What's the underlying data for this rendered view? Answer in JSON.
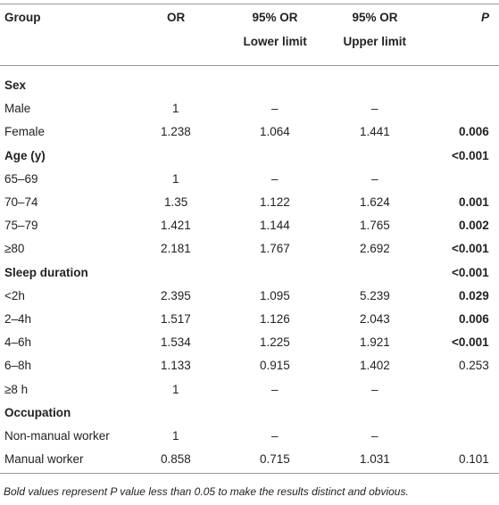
{
  "table": {
    "header": {
      "group": "Group",
      "or": "OR",
      "lower": [
        "95% OR",
        "Lower limit"
      ],
      "upper": [
        "95% OR",
        "Upper limit"
      ],
      "p": "P"
    },
    "rows": [
      {
        "group": "Sex",
        "heading": true
      },
      {
        "group": "Male",
        "or": 1,
        "lower": "–",
        "upper": "–"
      },
      {
        "group": "Female",
        "or": 1.238,
        "lower": 1.064,
        "upper": 1.441,
        "p": 0.006,
        "p_bold": true
      },
      {
        "group": "Age (y)",
        "heading": true,
        "p": "<0.001",
        "p_bold": true
      },
      {
        "group": "65–69",
        "or": 1,
        "lower": "–",
        "upper": "–"
      },
      {
        "group": "70–74",
        "or": 1.35,
        "lower": 1.122,
        "upper": 1.624,
        "p": 0.001,
        "p_bold": true
      },
      {
        "group": "75–79",
        "or": 1.421,
        "lower": 1.144,
        "upper": 1.765,
        "p": 0.002,
        "p_bold": true
      },
      {
        "group": "≥80",
        "or": 2.181,
        "lower": 1.767,
        "upper": 2.692,
        "p": "<0.001",
        "p_bold": true
      },
      {
        "group": "Sleep duration",
        "heading": true,
        "p": "<0.001",
        "p_bold": true
      },
      {
        "group": "<2h",
        "or": 2.395,
        "lower": 1.095,
        "upper": 5.239,
        "p": 0.029,
        "p_bold": true
      },
      {
        "group": "2–4h",
        "or": 1.517,
        "lower": 1.126,
        "upper": 2.043,
        "p": 0.006,
        "p_bold": true
      },
      {
        "group": "4–6h",
        "or": 1.534,
        "lower": 1.225,
        "upper": 1.921,
        "p": "<0.001",
        "p_bold": true
      },
      {
        "group": "6–8h",
        "or": 1.133,
        "lower": 0.915,
        "upper": 1.402,
        "p": 0.253
      },
      {
        "group": "≥8 h",
        "or": 1,
        "lower": "–",
        "upper": "–"
      },
      {
        "group": "Occupation",
        "heading": true
      },
      {
        "group": "Non-manual worker",
        "or": 1,
        "lower": "–",
        "upper": "–"
      },
      {
        "group": "Manual worker",
        "or": 0.858,
        "lower": 0.715,
        "upper": 1.031,
        "p": 0.101
      }
    ],
    "footnote": "Bold values represent P value less than 0.05 to make the results distinct and obvious."
  }
}
